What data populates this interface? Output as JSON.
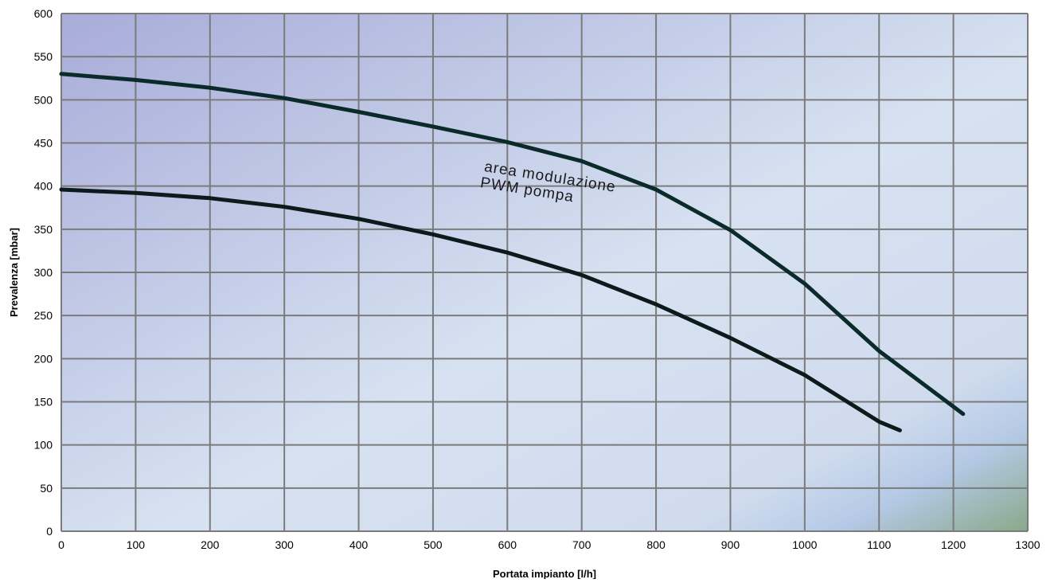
{
  "chart_data": {
    "type": "line",
    "title": "",
    "xlabel": "Portata impianto [l/h]",
    "ylabel": "Prevalenza [mbar]",
    "xlim": [
      0,
      1300
    ],
    "ylim": [
      0,
      600
    ],
    "x_ticks": [
      0,
      100,
      200,
      300,
      400,
      500,
      600,
      700,
      800,
      900,
      1000,
      1100,
      1200,
      1300
    ],
    "y_ticks": [
      0,
      50,
      100,
      150,
      200,
      250,
      300,
      350,
      400,
      450,
      500,
      550,
      600
    ],
    "grid": true,
    "legend": "none",
    "series": [
      {
        "color": "#0b2a2a",
        "points": [
          [
            0,
            530
          ],
          [
            100,
            523
          ],
          [
            200,
            514
          ],
          [
            300,
            502
          ],
          [
            400,
            486
          ],
          [
            500,
            469
          ],
          [
            600,
            451
          ],
          [
            700,
            429
          ],
          [
            800,
            396
          ],
          [
            900,
            349
          ],
          [
            1000,
            287
          ],
          [
            1100,
            209
          ],
          [
            1213,
            136
          ]
        ]
      },
      {
        "color": "#0b1a1a",
        "points": [
          [
            0,
            396
          ],
          [
            100,
            392
          ],
          [
            200,
            386
          ],
          [
            300,
            376
          ],
          [
            400,
            362
          ],
          [
            500,
            344
          ],
          [
            600,
            323
          ],
          [
            700,
            297
          ],
          [
            800,
            263
          ],
          [
            900,
            224
          ],
          [
            1000,
            181
          ],
          [
            1100,
            127
          ],
          [
            1128,
            117
          ]
        ]
      }
    ],
    "annotations": [
      {
        "line1": "area modulazione",
        "line2": "PWM pompa",
        "x": 520,
        "y": 410
      }
    ],
    "colors": {
      "background_top_left": "#a8acd9",
      "background_mid": "#d6e2f1",
      "background_bottom_right": "#8aa88a",
      "grid": "#7b7b7b"
    }
  }
}
